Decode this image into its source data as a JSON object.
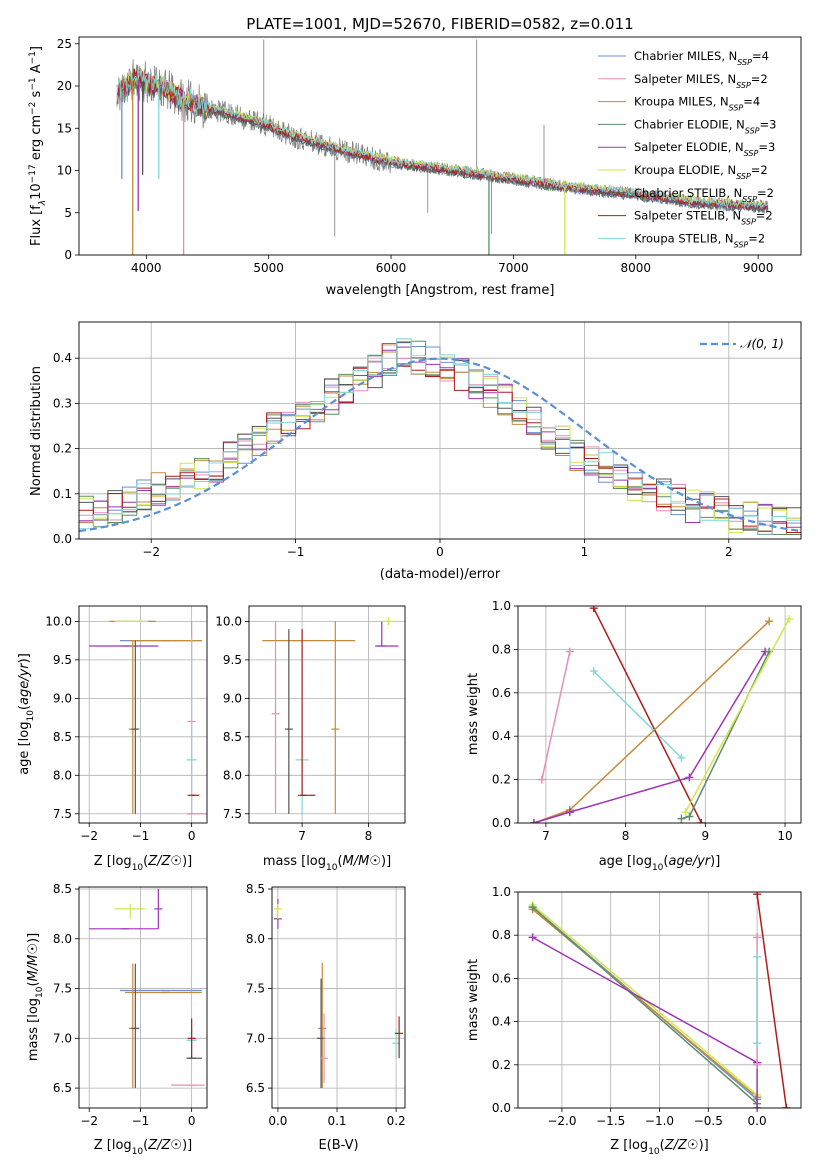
{
  "figure_title": "PLATE=1001, MJD=52670, FIBERID=0582, z=0.011",
  "series_colors": [
    "#6f8fd0",
    "#e58fb5",
    "#c58a3a",
    "#5e8d66",
    "#9d35b4",
    "#cfe84c",
    "#565656",
    "#b01c1c",
    "#80d8d8"
  ],
  "chart_data": [
    {
      "id": "spectrum",
      "type": "line",
      "title": "PLATE=1001, MJD=52670, FIBERID=0582, z=0.011",
      "xlabel": "wavelength [Angstrom, rest frame]",
      "ylabel_parts": [
        "Flux [f",
        "λ",
        "10",
        "−17",
        " erg cm",
        "−2",
        " s",
        "−1",
        " A",
        "−1",
        "]"
      ],
      "xlim": [
        3450,
        9350
      ],
      "ylim": [
        0,
        25.8
      ],
      "xticks": [
        4000,
        5000,
        6000,
        7000,
        8000,
        9000
      ],
      "yticks": [
        0,
        5,
        10,
        15,
        20,
        25
      ],
      "grid": false,
      "legend_position": "upper-right",
      "x_range": [
        3760,
        9080
      ],
      "continuum": {
        "x": [
          3760,
          3900,
          4000,
          4100,
          4300,
          4500,
          4700,
          5000,
          5200,
          5500,
          6000,
          6500,
          7000,
          7500,
          8000,
          8500,
          9080
        ],
        "y": [
          19.0,
          20.8,
          20.4,
          20.0,
          18.4,
          17.4,
          16.6,
          15.3,
          14.1,
          12.8,
          11.0,
          10.0,
          9.0,
          7.9,
          7.2,
          6.2,
          5.7
        ]
      },
      "series": [
        {
          "label": "Chabrier MILES",
          "n": "4"
        },
        {
          "label": "Salpeter MILES",
          "n": "2"
        },
        {
          "label": "Kroupa MILES",
          "n": "4"
        },
        {
          "label": "Chabrier ELODIE",
          "n": "3"
        },
        {
          "label": "Salpeter ELODIE",
          "n": "3"
        },
        {
          "label": "Kroupa ELODIE",
          "n": "2"
        },
        {
          "label": "Chabrier STELIB",
          "n": "2"
        },
        {
          "label": "Salpeter STELIB",
          "n": "2"
        },
        {
          "label": "Kroupa STELIB",
          "n": "2"
        }
      ],
      "legend_n_prefix": "N",
      "legend_n_sub": "SSP",
      "absorption_features": [
        {
          "x": 3800,
          "y": 9.0
        },
        {
          "x": 3889,
          "y": 0
        },
        {
          "x": 3934,
          "y": 5.2
        },
        {
          "x": 3970,
          "y": 9.5
        },
        {
          "x": 4102,
          "y": 9.0
        },
        {
          "x": 4305,
          "y": 0
        },
        {
          "x": 6800,
          "y": 0
        },
        {
          "x": 7420,
          "y": 0
        }
      ],
      "data_spikes": [
        {
          "x": 4960,
          "y": 25.5
        },
        {
          "x": 5540,
          "y": 2.2
        },
        {
          "x": 6300,
          "y": 5.0
        },
        {
          "x": 6700,
          "y": 25.5
        },
        {
          "x": 6820,
          "y": 2.5
        },
        {
          "x": 7250,
          "y": 15.4
        }
      ]
    },
    {
      "id": "residuals",
      "type": "line",
      "xlabel": "(data-model)/error",
      "ylabel": "Normed distribution",
      "xlim": [
        -2.5,
        2.5
      ],
      "ylim": [
        0,
        0.48
      ],
      "xticks": [
        -2,
        -1,
        0,
        1,
        2
      ],
      "yticks": [
        0.0,
        0.1,
        0.2,
        0.3,
        0.4
      ],
      "grid": true,
      "legend_position": "upper-right",
      "reference_curve": {
        "label": "N(0,1)",
        "label_script": "𝒩(0, 1)",
        "mu": 0,
        "sigma": 1
      },
      "bin_width": 0.1,
      "histogram_envelope": {
        "x": [
          -2.5,
          -2.0,
          -1.5,
          -1.0,
          -0.5,
          -0.3,
          0.0,
          0.3,
          0.6,
          1.0,
          1.5,
          2.0,
          2.5
        ],
        "y": [
          0.05,
          0.1,
          0.17,
          0.27,
          0.36,
          0.41,
          0.39,
          0.34,
          0.27,
          0.18,
          0.1,
          0.05,
          0.03
        ]
      }
    },
    {
      "id": "age-vs-Z",
      "type": "scatter",
      "xlabel": "Z [log10(Z/Z☉)]",
      "ylabel": "age  [log10(age/yr)]",
      "xlim": [
        -2.2,
        0.3
      ],
      "ylim": [
        7.38,
        10.2
      ],
      "xticks": [
        -2,
        -1,
        0
      ],
      "yticks": [
        7.5,
        8.0,
        8.5,
        9.0,
        9.5,
        10.0
      ],
      "grid": true,
      "points": [
        {
          "s": 4,
          "x": -1.3,
          "x0": -2.0,
          "x1": -0.65,
          "y": 9.68,
          "y0": 9.68,
          "y1": 9.68
        },
        {
          "s": 2,
          "x": -1.2,
          "x0": -1.6,
          "x1": -0.7,
          "y": 10.0,
          "y0": 10.0,
          "y1": 10.0
        },
        {
          "s": 5,
          "x": -1.1,
          "x0": -1.5,
          "x1": -0.85,
          "y": 10.0,
          "y0": 10.0,
          "y1": 10.0
        },
        {
          "s": 0,
          "x": -0.5,
          "x0": -1.4,
          "x1": 0.2,
          "y": 9.75,
          "y0": 9.75,
          "y1": 9.75
        },
        {
          "s": 2,
          "x": -0.5,
          "x0": -1.2,
          "x1": 0.2,
          "y": 9.75,
          "y0": 9.75,
          "y1": 9.75
        },
        {
          "s": 2,
          "x": -1.15,
          "x0": -1.15,
          "x1": -1.15,
          "y": 8.6,
          "y0": 7.5,
          "y1": 9.75
        },
        {
          "s": 6,
          "x": -1.1,
          "x0": -1.1,
          "x1": -1.1,
          "y": 8.6,
          "y0": 7.5,
          "y1": 9.75
        },
        {
          "s": 1,
          "x": 0.0,
          "x0": 0.0,
          "x1": 0.0,
          "y": 8.7,
          "y0": 7.5,
          "y1": 10.0
        },
        {
          "s": 8,
          "x": 0.0,
          "x0": -0.1,
          "x1": 0.1,
          "y": 8.2,
          "y0": 7.5,
          "y1": 9.8
        },
        {
          "s": 7,
          "x": 0.0,
          "x0": 0.0,
          "x1": 0.15,
          "y": 7.74,
          "y0": 7.74,
          "y1": 7.74
        },
        {
          "s": 1,
          "x": 0.0,
          "x0": -0.1,
          "x1": 0.3,
          "y": 7.5,
          "y0": 7.5,
          "y1": 7.5
        }
      ]
    },
    {
      "id": "age-vs-mass",
      "type": "scatter",
      "xlabel": "mass [log10(M/M☉)]",
      "ylabel": "",
      "xlim": [
        6.2,
        8.55
      ],
      "ylim": [
        7.38,
        10.2
      ],
      "xticks": [
        7,
        8
      ],
      "yticks": [
        7.5,
        8.0,
        8.5,
        9.0,
        9.5,
        10.0
      ],
      "grid": true,
      "points": [
        {
          "s": 1,
          "x": 6.6,
          "x0": 6.6,
          "x1": 6.6,
          "y": 8.8,
          "y0": 7.5,
          "y1": 10.0
        },
        {
          "s": 2,
          "x": 6.9,
          "x0": 6.4,
          "x1": 7.8,
          "y": 9.75,
          "y0": 9.75,
          "y1": 9.75
        },
        {
          "s": 6,
          "x": 6.8,
          "x0": 6.8,
          "x1": 6.8,
          "y": 8.6,
          "y0": 7.5,
          "y1": 9.9
        },
        {
          "s": 8,
          "x": 7.0,
          "x0": 6.9,
          "x1": 7.1,
          "y": 8.2,
          "y0": 7.5,
          "y1": 9.9
        },
        {
          "s": 7,
          "x": 7.0,
          "x0": 7.0,
          "x1": 7.2,
          "y": 7.74,
          "y0": 7.74,
          "y1": 9.9
        },
        {
          "s": 2,
          "x": 7.5,
          "x0": 7.5,
          "x1": 7.5,
          "y": 8.6,
          "y0": 7.5,
          "y1": 10.0
        },
        {
          "s": 4,
          "x": 8.2,
          "x0": 8.1,
          "x1": 8.45,
          "y": 9.68,
          "y0": 9.68,
          "y1": 10.0
        },
        {
          "s": 5,
          "x": 8.3,
          "x0": 8.2,
          "x1": 8.4,
          "y": 10.0,
          "y0": 9.95,
          "y1": 10.05
        }
      ]
    },
    {
      "id": "mass-weight-vs-age",
      "type": "line",
      "xlabel": "age  [log10(age/yr)]",
      "ylabel": "mass weight",
      "xlim": [
        6.65,
        10.2
      ],
      "ylim": [
        0,
        1.0
      ],
      "xticks": [
        7,
        8,
        9,
        10
      ],
      "yticks": [
        0.0,
        0.2,
        0.4,
        0.6,
        0.8,
        1.0
      ],
      "grid": true,
      "series": [
        {
          "s": 1,
          "x": [
            6.95,
            7.3
          ],
          "y": [
            0.2,
            0.79
          ]
        },
        {
          "s": 8,
          "x": [
            7.6,
            8.7
          ],
          "y": [
            0.7,
            0.3
          ]
        },
        {
          "s": 7,
          "x": [
            7.6,
            8.95
          ],
          "y": [
            0.99,
            0.0
          ]
        },
        {
          "s": 2,
          "x": [
            6.85,
            7.3,
            9.8
          ],
          "y": [
            0.0,
            0.06,
            0.93
          ]
        },
        {
          "s": 4,
          "x": [
            6.85,
            7.3,
            8.8,
            9.75
          ],
          "y": [
            0.0,
            0.05,
            0.21,
            0.79
          ]
        },
        {
          "s": 3,
          "x": [
            8.7,
            8.8,
            9.8
          ],
          "y": [
            0.02,
            0.03,
            0.79
          ]
        },
        {
          "s": 5,
          "x": [
            8.75,
            10.05
          ],
          "y": [
            0.05,
            0.94
          ]
        }
      ]
    },
    {
      "id": "mass-vs-Z",
      "type": "scatter",
      "xlabel": "Z [log10(Z/Z☉)]",
      "ylabel": "mass [log10(M/M☉)]",
      "xlim": [
        -2.2,
        0.3
      ],
      "ylim": [
        6.3,
        8.52
      ],
      "xticks": [
        -2,
        -1,
        0
      ],
      "yticks": [
        6.5,
        7.0,
        7.5,
        8.0,
        8.5
      ],
      "grid": true,
      "points": [
        {
          "s": 4,
          "x": -1.3,
          "x0": -2.0,
          "x1": -0.65,
          "y": 8.1,
          "y0": 8.1,
          "y1": 8.1
        },
        {
          "s": 4,
          "x": -0.65,
          "x0": -0.65,
          "x1": -0.65,
          "y": 8.3,
          "y0": 8.1,
          "y1": 8.5
        },
        {
          "s": 5,
          "x": -1.2,
          "x0": -1.5,
          "x1": -0.9,
          "y": 8.3,
          "y0": 8.2,
          "y1": 8.35
        },
        {
          "s": 0,
          "x": -0.5,
          "x0": -1.4,
          "x1": 0.2,
          "y": 7.48,
          "y0": 7.48,
          "y1": 7.48
        },
        {
          "s": 2,
          "x": -0.5,
          "x0": -1.3,
          "x1": 0.2,
          "y": 7.46,
          "y0": 7.46,
          "y1": 7.46
        },
        {
          "s": 2,
          "x": -1.15,
          "x0": -1.15,
          "x1": -1.15,
          "y": 7.1,
          "y0": 6.5,
          "y1": 7.75
        },
        {
          "s": 6,
          "x": -1.1,
          "x0": -1.1,
          "x1": -1.1,
          "y": 7.1,
          "y0": 6.5,
          "y1": 7.75
        },
        {
          "s": 1,
          "x": 0.0,
          "x0": -0.4,
          "x1": 0.25,
          "y": 6.53,
          "y0": 6.53,
          "y1": 6.53
        },
        {
          "s": 8,
          "x": 0.0,
          "x0": -0.1,
          "x1": 0.1,
          "y": 6.98,
          "y0": 6.8,
          "y1": 7.1
        },
        {
          "s": 7,
          "x": 0.0,
          "x0": 0.0,
          "x1": 0.0,
          "y": 7.0,
          "y0": 6.8,
          "y1": 7.2
        },
        {
          "s": 6,
          "x": 0.0,
          "x0": -0.1,
          "x1": 0.2,
          "y": 6.8,
          "y0": 6.8,
          "y1": 6.8
        }
      ]
    },
    {
      "id": "mass-vs-ebv",
      "type": "scatter",
      "xlabel": "E(B-V)",
      "ylabel": "",
      "xlim": [
        -0.01,
        0.215
      ],
      "ylim": [
        6.3,
        8.52
      ],
      "xticks": [
        0.0,
        0.1,
        0.2
      ],
      "yticks": [
        6.5,
        7.0,
        7.5,
        8.0,
        8.5
      ],
      "grid": true,
      "points": [
        {
          "s": 4,
          "x": 0.0,
          "x0": 0.0,
          "x1": 0.0,
          "y": 8.2,
          "y0": 8.1,
          "y1": 8.4
        },
        {
          "s": 5,
          "x": 0.0,
          "x0": 0.0,
          "x1": 0.0,
          "y": 8.3,
          "y0": 8.2,
          "y1": 8.35
        },
        {
          "s": 2,
          "x": 0.075,
          "x0": 0.075,
          "x1": 0.075,
          "y": 7.1,
          "y0": 6.5,
          "y1": 7.76
        },
        {
          "s": 6,
          "x": 0.073,
          "x0": 0.073,
          "x1": 0.073,
          "y": 7.0,
          "y0": 6.5,
          "y1": 7.6
        },
        {
          "s": 1,
          "x": 0.078,
          "x0": 0.078,
          "x1": 0.078,
          "y": 6.8,
          "y0": 6.55,
          "y1": 7.25
        },
        {
          "s": 8,
          "x": 0.2,
          "x0": 0.2,
          "x1": 0.2,
          "y": 6.95,
          "y0": 6.8,
          "y1": 7.1
        },
        {
          "s": 7,
          "x": 0.205,
          "x0": 0.205,
          "x1": 0.205,
          "y": 7.05,
          "y0": 6.8,
          "y1": 7.22
        }
      ]
    },
    {
      "id": "mass-weight-vs-Z",
      "type": "line",
      "xlabel": "Z [log10(Z/Z☉)]",
      "ylabel": "mass weight",
      "xlim": [
        -2.45,
        0.45
      ],
      "ylim": [
        0,
        1.0
      ],
      "xticks": [
        -2.0,
        -1.5,
        -1.0,
        -0.5,
        0.0
      ],
      "yticks": [
        0.0,
        0.2,
        0.4,
        0.6,
        0.8,
        1.0
      ],
      "grid": true,
      "series": [
        {
          "s": 0,
          "x": [
            -2.3,
            0.0
          ],
          "y": [
            0.93,
            0.04
          ]
        },
        {
          "s": 2,
          "x": [
            -2.3,
            0.0
          ],
          "y": [
            0.92,
            0.05
          ]
        },
        {
          "s": 5,
          "x": [
            -2.3,
            0.0
          ],
          "y": [
            0.94,
            0.06
          ]
        },
        {
          "s": 3,
          "x": [
            -2.3,
            0.0
          ],
          "y": [
            0.93,
            0.02
          ]
        },
        {
          "s": 4,
          "x": [
            -2.3,
            0.0,
            0.0
          ],
          "y": [
            0.79,
            0.21,
            0.0
          ]
        },
        {
          "s": 1,
          "x": [
            0.0,
            0.0
          ],
          "y": [
            0.79,
            0.2
          ]
        },
        {
          "s": 8,
          "x": [
            0.0,
            0.0
          ],
          "y": [
            0.7,
            0.3
          ]
        },
        {
          "s": 7,
          "x": [
            0.0,
            0.3
          ],
          "y": [
            0.99,
            0.0
          ]
        }
      ]
    }
  ]
}
